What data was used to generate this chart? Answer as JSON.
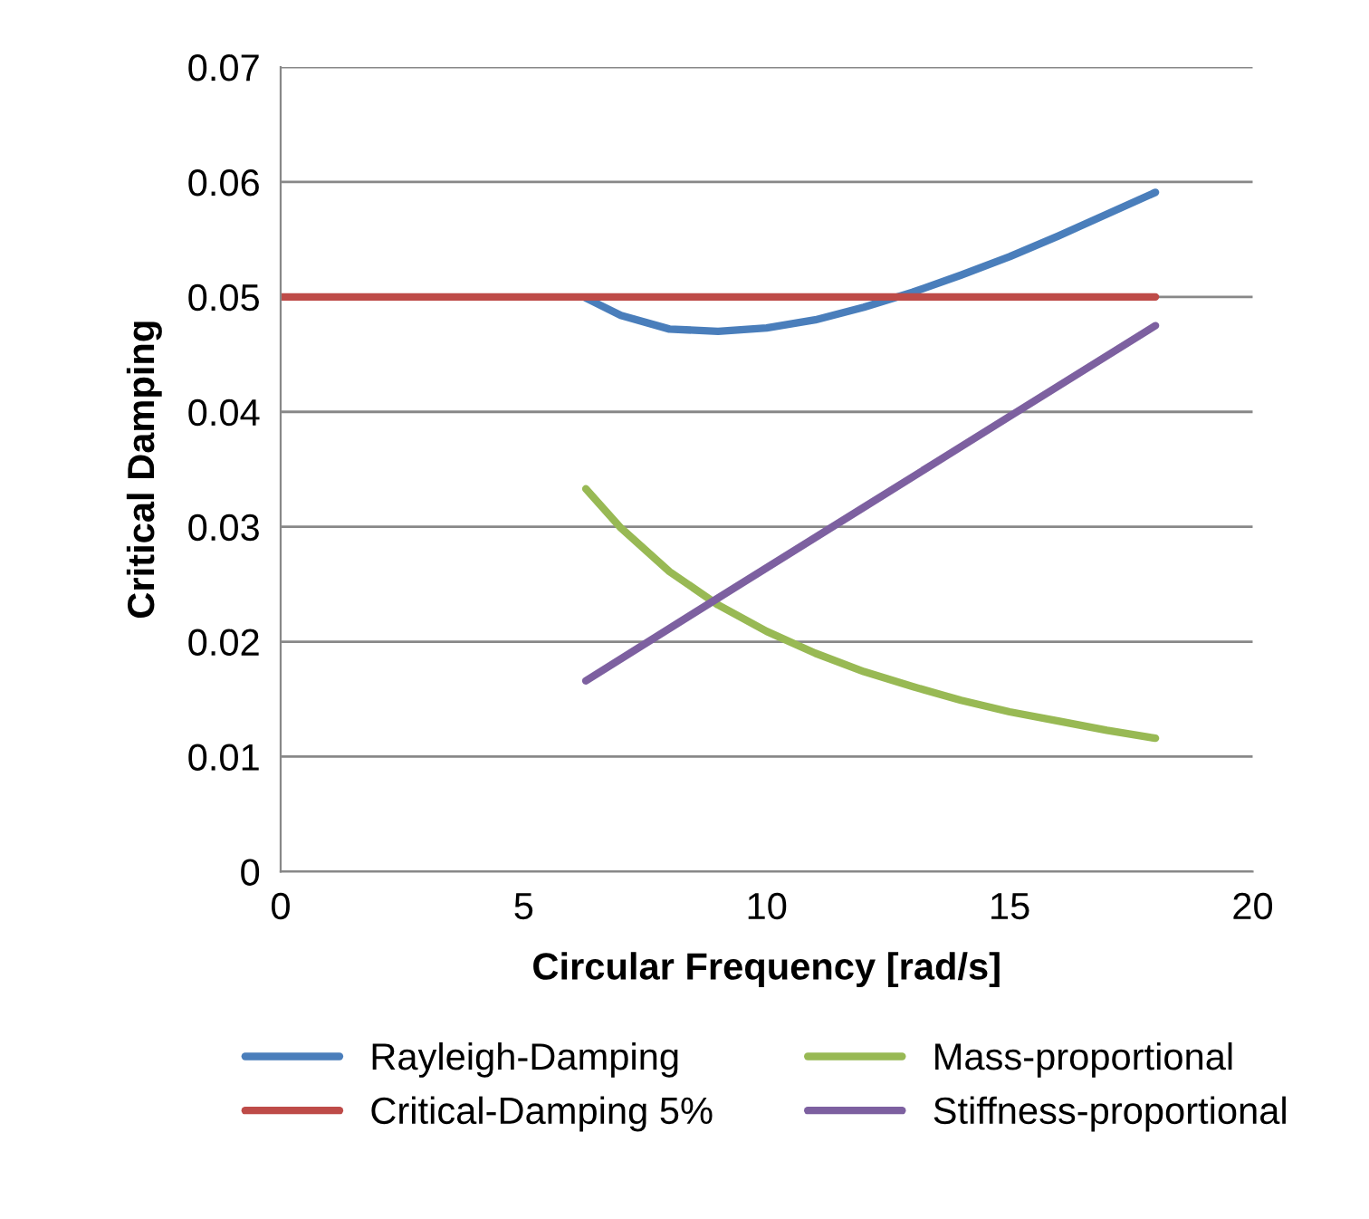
{
  "chart_data": {
    "type": "line",
    "xlabel": "Circular Frequency [rad/s]",
    "ylabel": "Critical Damping",
    "xlim": [
      0,
      20
    ],
    "xticks": [
      0,
      5,
      10,
      15,
      20
    ],
    "ylim": [
      0,
      0.07
    ],
    "yticks": [
      0,
      0.01,
      0.02,
      0.03,
      0.04,
      0.05,
      0.06,
      0.07
    ],
    "grid": "y",
    "legend": "bottom",
    "marker": "none",
    "line_style": "solid",
    "series": [
      {
        "name": "Rayleigh-Damping",
        "color": "#4a7ebb",
        "x": [
          6.28,
          7,
          8,
          9,
          10,
          11,
          12,
          13,
          14,
          15,
          16,
          17,
          18
        ],
        "values": [
          0.0499,
          0.0484,
          0.0472,
          0.047,
          0.0473,
          0.048,
          0.0491,
          0.0504,
          0.0519,
          0.0535,
          0.0553,
          0.0572,
          0.0591
        ]
      },
      {
        "name": "Critical-Damping 5%",
        "color": "#be4b48",
        "x": [
          0,
          18
        ],
        "values": [
          0.05,
          0.05
        ]
      },
      {
        "name": "Mass-proportional",
        "color": "#98b954",
        "x": [
          6.28,
          7,
          8,
          9,
          10,
          11,
          12,
          13,
          14,
          15,
          16,
          17,
          18
        ],
        "values": [
          0.0333,
          0.0299,
          0.0261,
          0.0232,
          0.0209,
          0.019,
          0.0174,
          0.0161,
          0.0149,
          0.0139,
          0.0131,
          0.0123,
          0.0116
        ]
      },
      {
        "name": "Stiffness-proportional",
        "color": "#7d60a0",
        "x": [
          6.28,
          9,
          12,
          15,
          18
        ],
        "values": [
          0.0166,
          0.0238,
          0.0317,
          0.0396,
          0.0475
        ]
      }
    ]
  }
}
